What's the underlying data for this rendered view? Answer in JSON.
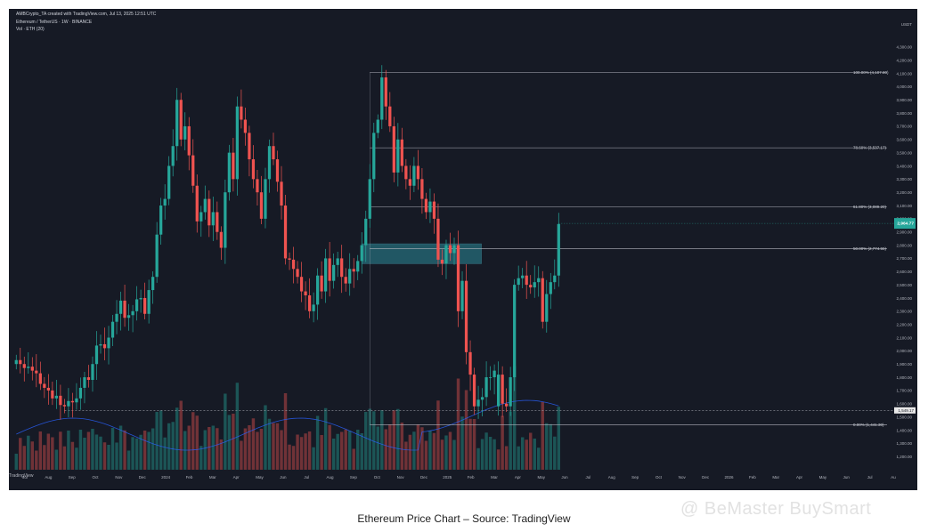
{
  "header": {
    "line1": "AMBCrypto_TA created with TradingView.com, Jul 13, 2025 12:51 UTC",
    "line2": "Ethereum / TetherUS · 1W · BINANCE",
    "line3": "Vol · ETH (20)"
  },
  "caption": "Ethereum Price Chart – Source: TradingView",
  "watermark": "@ BeMaster BuySmart",
  "branding": "TradingView",
  "colors": {
    "up": "#26a69a",
    "down": "#ef5350",
    "fib": "#b2b5be",
    "zone": "#2b8a99",
    "price_tag": "#26a69a"
  },
  "chart_data": {
    "type": "candlestick",
    "y_axis_label": "USDT",
    "ylim": [
      1100,
      4400
    ],
    "y_ticks": [
      1200,
      1300,
      1400,
      1500,
      1600,
      1700,
      1800,
      1900,
      2000,
      2100,
      2200,
      2300,
      2400,
      2500,
      2600,
      2700,
      2800,
      2900,
      3000,
      3100,
      3200,
      3300,
      3400,
      3500,
      3600,
      3700,
      3800,
      3900,
      4000,
      4100,
      4200,
      4300
    ],
    "x_ticks": [
      "Jul",
      "Aug",
      "Sep",
      "Oct",
      "Nov",
      "Dec",
      "2024",
      "Feb",
      "Mar",
      "Apr",
      "May",
      "Jun",
      "Jul",
      "Aug",
      "Sep",
      "Oct",
      "Nov",
      "Dec",
      "2025",
      "Feb",
      "Mar",
      "Apr",
      "May",
      "Jun",
      "Jul",
      "Aug",
      "Sep",
      "Oct",
      "Nov",
      "Dec",
      "2026",
      "Feb",
      "Mar",
      "Apr",
      "May",
      "Jun",
      "Jul",
      "Au"
    ],
    "closes": [
      1930,
      1900,
      1870,
      1880,
      1850,
      1830,
      1750,
      1720,
      1700,
      1640,
      1660,
      1590,
      1580,
      1620,
      1610,
      1640,
      1720,
      1800,
      1780,
      1900,
      2040,
      2050,
      2020,
      2100,
      2220,
      2280,
      2380,
      2250,
      2270,
      2300,
      2390,
      2400,
      2280,
      2460,
      2560,
      2880,
      3100,
      3150,
      3400,
      3550,
      3900,
      3600,
      3700,
      3480,
      3250,
      2980,
      3050,
      3150,
      2950,
      3050,
      2900,
      2780,
      3200,
      3500,
      3300,
      3850,
      3750,
      3650,
      3450,
      3300,
      3200,
      3000,
      3300,
      3550,
      3450,
      3280,
      3100,
      2700,
      2690,
      2620,
      2560,
      2450,
      2420,
      2300,
      2350,
      2570,
      2450,
      2700,
      2530,
      2650,
      2700,
      2560,
      2510,
      2620,
      2600,
      2680,
      2800,
      3000,
      3300,
      3650,
      3750,
      4070,
      3850,
      3700,
      3350,
      3600,
      3400,
      3300,
      3250,
      3400,
      3300,
      3150,
      3050,
      3130,
      3000,
      2690,
      2660,
      2800,
      2740,
      2800,
      2300,
      2530,
      1990,
      1820,
      1580,
      1630,
      1650,
      1800,
      1800,
      1850,
      1820,
      1600,
      1580,
      1800,
      2500,
      2550,
      2570,
      2500,
      2480,
      2520,
      2550,
      2220,
      2430,
      2520,
      2570,
      2960
    ],
    "fib_levels": [
      {
        "label": "100.00% (4,107.80)",
        "value": 4107.8
      },
      {
        "label": "78.60% (3,537.17)",
        "value": 3537.17
      },
      {
        "label": "61.80% (3,089.20)",
        "value": 3089.2
      },
      {
        "label": "50.00% (2,774.55)",
        "value": 2774.55
      },
      {
        "label": "0.00% (1,441.30)",
        "value": 1441.3
      }
    ],
    "zone": {
      "top": 2810,
      "bottom": 2660
    },
    "dashed_level": {
      "label": "1,549.17",
      "value": 1549.17
    },
    "current_price": {
      "label": "2,964.77",
      "value": 2964.77
    },
    "volume_ma_label": "Vol · ETH (20)"
  }
}
